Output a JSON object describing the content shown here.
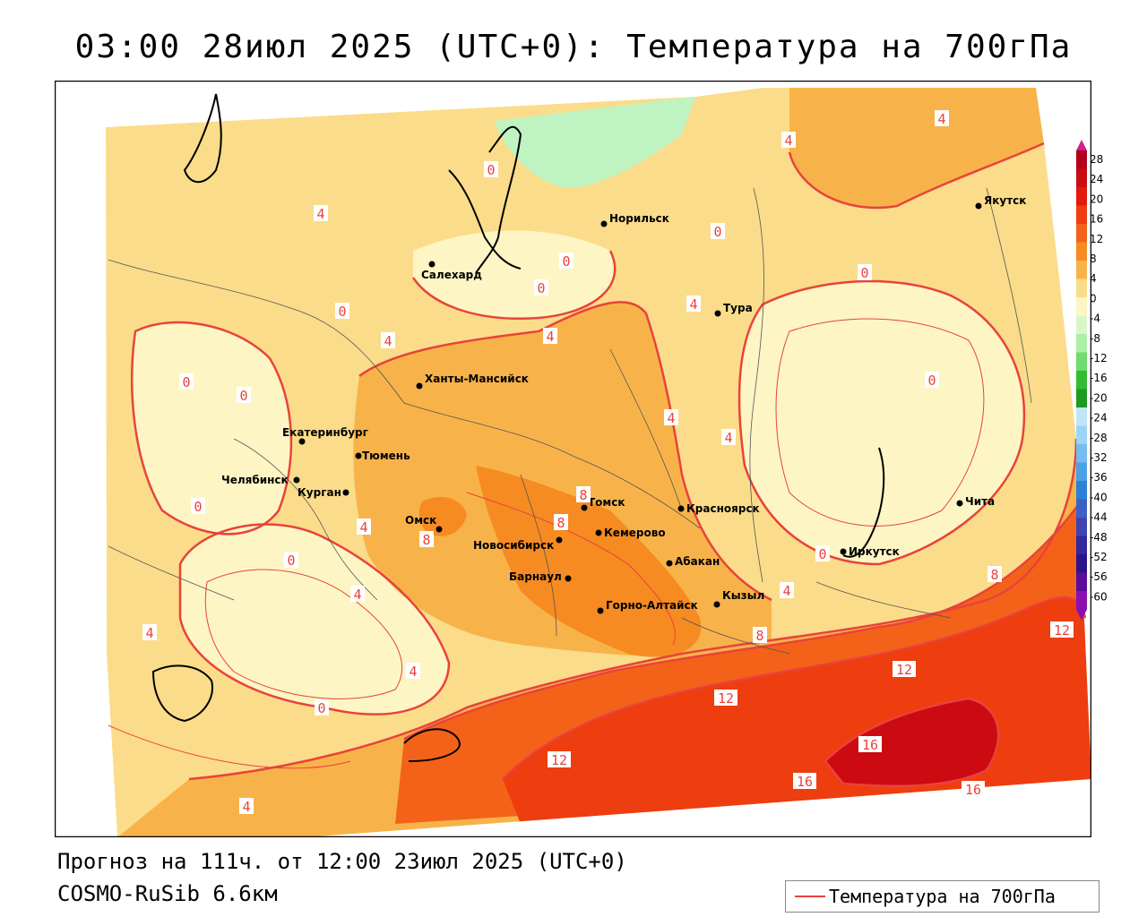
{
  "header": {
    "title": "03:00 28июл 2025 (UTC+0): Температура на 700гПа"
  },
  "footer": {
    "forecast": "Прогноз на 111ч. от 12:00 23июл 2025 (UTC+0)",
    "model": "COSMO-RuSib 6.6км"
  },
  "legend": {
    "label": "Температура на 700гПа",
    "line_color": "#e8433b"
  },
  "colorbar": {
    "labels": [
      "28",
      "24",
      "20",
      "16",
      "12",
      "8",
      "4",
      "0",
      "-4",
      "-8",
      "-12",
      "-16",
      "-20",
      "-24",
      "-28",
      "-32",
      "-36",
      "-40",
      "-44",
      "-48",
      "-52",
      "-56",
      "-60"
    ],
    "colors": [
      "#b2001a",
      "#cc0a12",
      "#e11a0c",
      "#ee3d0f",
      "#f4621a",
      "#f68b22",
      "#f7b34a",
      "#fbdc8a",
      "#fdf5c4",
      "#d8f7c8",
      "#aaf0a6",
      "#6fdc6f",
      "#33bb33",
      "#1e9a1e",
      "#c2e4f7",
      "#9dd3f4",
      "#74bdee",
      "#4ba0e6",
      "#2d80d8",
      "#3b62c6",
      "#3e45b3",
      "#33289e",
      "#2a1488",
      "#5a0c9c",
      "#8a10b0"
    ]
  },
  "cities": [
    {
      "name": "Норильск"
    },
    {
      "name": "Якутск"
    },
    {
      "name": "Салехард"
    },
    {
      "name": "Тура"
    },
    {
      "name": "Ханты-Мансийск"
    },
    {
      "name": "Екатеринбург"
    },
    {
      "name": "Тюмень"
    },
    {
      "name": "Челябинск"
    },
    {
      "name": "Курган"
    },
    {
      "name": "Омск"
    },
    {
      "name": "Новосибирск"
    },
    {
      "name": "Томск"
    },
    {
      "name": "Кемерово"
    },
    {
      "name": "Красноярск"
    },
    {
      "name": "Абакан"
    },
    {
      "name": "Барнаул"
    },
    {
      "name": "Горно-Алтайск"
    },
    {
      "name": "Кызыл"
    },
    {
      "name": "Иркутск"
    },
    {
      "name": "Чита"
    }
  ],
  "contour_labels": [
    "4",
    "4",
    "4",
    "0",
    "0",
    "0",
    "0",
    "0",
    "0",
    "4",
    "4",
    "0",
    "0",
    "4",
    "4",
    "4",
    "4",
    "0",
    "0",
    "8",
    "0",
    "4",
    "4",
    "4",
    "0",
    "4",
    "8",
    "8",
    "8",
    "8",
    "12",
    "12",
    "12",
    "12",
    "16",
    "16",
    "16",
    "0",
    "4"
  ]
}
